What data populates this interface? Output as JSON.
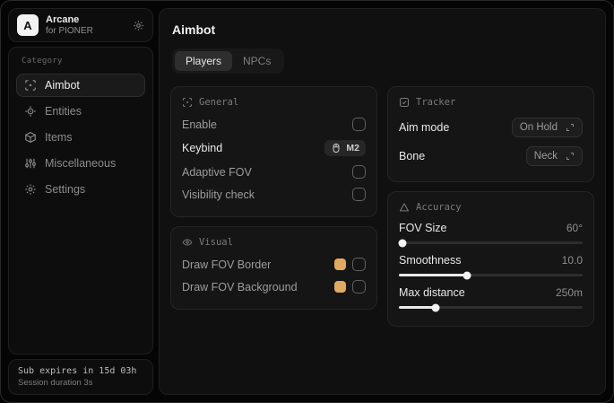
{
  "sidebar": {
    "logo_letter": "A",
    "app_name": "Arcane",
    "app_subtitle": "for PIONER",
    "category_label": "Category",
    "items": [
      {
        "label": "Aimbot",
        "active": true
      },
      {
        "label": "Entities",
        "active": false
      },
      {
        "label": "Items",
        "active": false
      },
      {
        "label": "Miscellaneous",
        "active": false
      },
      {
        "label": "Settings",
        "active": false
      }
    ],
    "footer": {
      "expiry": "Sub expires in 15d 03h",
      "session": "Session duration 3s"
    }
  },
  "main": {
    "title": "Aimbot",
    "tabs": [
      {
        "label": "Players",
        "active": true
      },
      {
        "label": "NPCs",
        "active": false
      }
    ],
    "panels": {
      "general": {
        "title": "General",
        "rows": [
          {
            "label": "Enable",
            "control": "checkbox",
            "checked": false
          },
          {
            "label": "Keybind",
            "control": "keybind",
            "value": "M2"
          },
          {
            "label": "Adaptive FOV",
            "control": "checkbox",
            "checked": false
          },
          {
            "label": "Visibility check",
            "control": "checkbox",
            "checked": false
          }
        ]
      },
      "visual": {
        "title": "Visual",
        "rows": [
          {
            "label": "Draw FOV Border",
            "control": "color-checkbox",
            "color": "#e0aa60",
            "checked": false
          },
          {
            "label": "Draw FOV Background",
            "control": "color-checkbox",
            "color": "#e0aa60",
            "checked": false
          }
        ]
      },
      "tracker": {
        "title": "Tracker",
        "rows": [
          {
            "label": "Aim mode",
            "value": "On Hold"
          },
          {
            "label": "Bone",
            "value": "Neck"
          }
        ]
      },
      "accuracy": {
        "title": "Accuracy",
        "sliders": [
          {
            "label": "FOV Size",
            "value": "60°",
            "percent": 2
          },
          {
            "label": "Smoothness",
            "value": "10.0",
            "percent": 37
          },
          {
            "label": "Max distance",
            "value": "250m",
            "percent": 20
          }
        ]
      }
    }
  },
  "colors": {
    "accent_gold": "#e0aa60"
  }
}
